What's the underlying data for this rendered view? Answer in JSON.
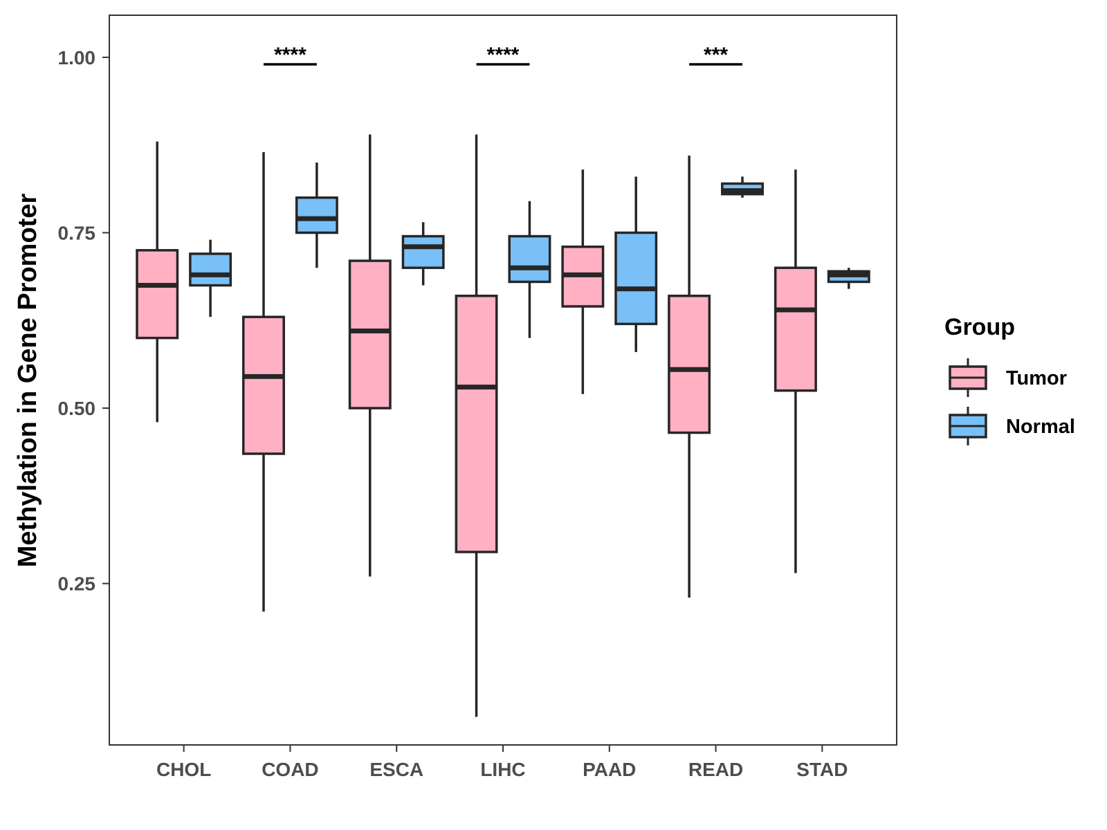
{
  "chart_data": {
    "type": "boxplot",
    "title": "",
    "xlabel": "",
    "ylabel": "Methylation in Gene Promoter",
    "ylim": [
      0.02,
      1.06
    ],
    "yticks": [
      0.25,
      0.5,
      0.75,
      1.0
    ],
    "ytick_labels": [
      "0.25",
      "0.50",
      "0.75",
      "1.00"
    ],
    "categories": [
      "CHOL",
      "COAD",
      "ESCA",
      "LIHC",
      "PAAD",
      "READ",
      "STAD"
    ],
    "colors": {
      "Tumor": "#ffb0c3",
      "Normal": "#78c0f7",
      "stroke": "#262626"
    },
    "legend": {
      "title": "Group",
      "position": "right",
      "entries": [
        "Tumor",
        "Normal"
      ]
    },
    "series": [
      {
        "name": "Tumor",
        "boxes": [
          {
            "category": "CHOL",
            "min": 0.48,
            "q1": 0.6,
            "median": 0.675,
            "q3": 0.725,
            "max": 0.88
          },
          {
            "category": "COAD",
            "min": 0.21,
            "q1": 0.435,
            "median": 0.545,
            "q3": 0.63,
            "max": 0.865
          },
          {
            "category": "ESCA",
            "min": 0.26,
            "q1": 0.5,
            "median": 0.61,
            "q3": 0.71,
            "max": 0.89
          },
          {
            "category": "LIHC",
            "min": 0.06,
            "q1": 0.295,
            "median": 0.53,
            "q3": 0.66,
            "max": 0.89
          },
          {
            "category": "PAAD",
            "min": 0.52,
            "q1": 0.645,
            "median": 0.69,
            "q3": 0.73,
            "max": 0.84
          },
          {
            "category": "READ",
            "min": 0.23,
            "q1": 0.465,
            "median": 0.555,
            "q3": 0.66,
            "max": 0.86
          },
          {
            "category": "STAD",
            "min": 0.265,
            "q1": 0.525,
            "median": 0.64,
            "q3": 0.7,
            "max": 0.84
          }
        ]
      },
      {
        "name": "Normal",
        "boxes": [
          {
            "category": "CHOL",
            "min": 0.63,
            "q1": 0.675,
            "median": 0.69,
            "q3": 0.72,
            "max": 0.74
          },
          {
            "category": "COAD",
            "min": 0.7,
            "q1": 0.75,
            "median": 0.77,
            "q3": 0.8,
            "max": 0.85
          },
          {
            "category": "ESCA",
            "min": 0.675,
            "q1": 0.7,
            "median": 0.73,
            "q3": 0.745,
            "max": 0.765
          },
          {
            "category": "LIHC",
            "min": 0.6,
            "q1": 0.68,
            "median": 0.7,
            "q3": 0.745,
            "max": 0.795
          },
          {
            "category": "PAAD",
            "min": 0.58,
            "q1": 0.62,
            "median": 0.67,
            "q3": 0.75,
            "max": 0.83
          },
          {
            "category": "READ",
            "min": 0.8,
            "q1": 0.805,
            "median": 0.81,
            "q3": 0.82,
            "max": 0.83
          },
          {
            "category": "STAD",
            "min": 0.67,
            "q1": 0.68,
            "median": 0.69,
            "q3": 0.695,
            "max": 0.7
          }
        ]
      }
    ],
    "annotations": [
      {
        "category": "COAD",
        "label": "****",
        "y": 0.99
      },
      {
        "category": "LIHC",
        "label": "****",
        "y": 0.99
      },
      {
        "category": "READ",
        "label": "***",
        "y": 0.99
      }
    ]
  }
}
